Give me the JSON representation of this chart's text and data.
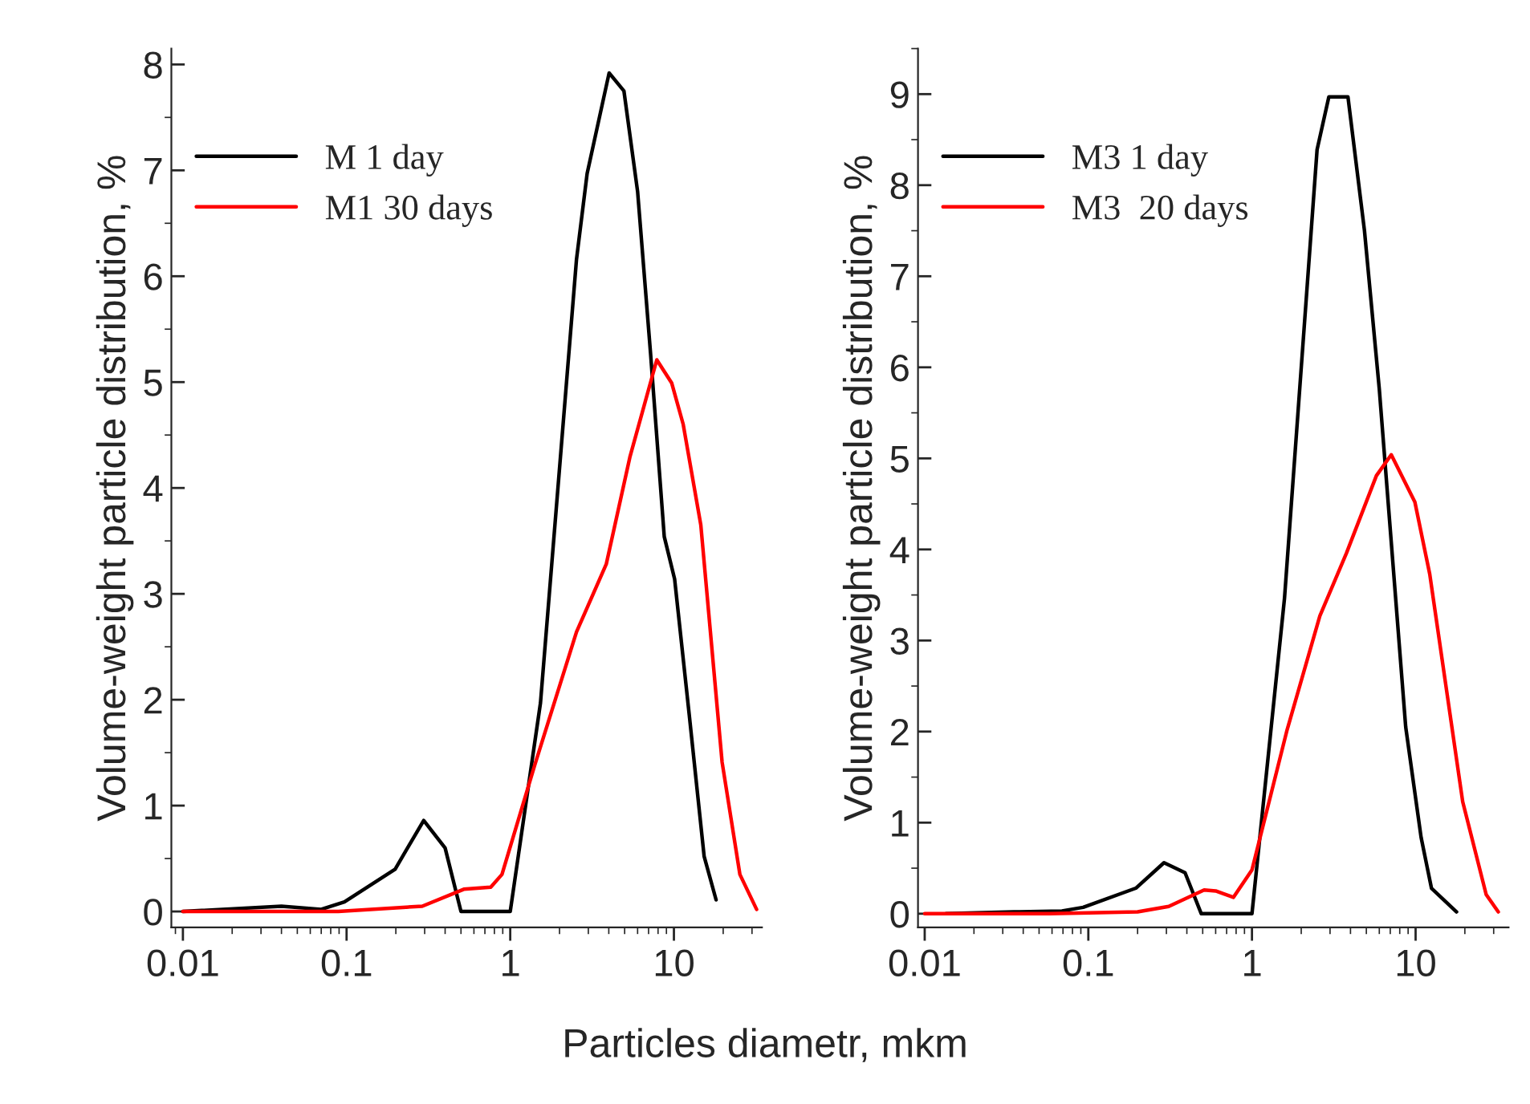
{
  "chart_data": [
    {
      "type": "line",
      "xlabel": "Particles diametr, mkm",
      "ylabel": "Volume-weight particle distribution, %",
      "log": "x",
      "legend": "top left",
      "grid": false,
      "xlim": [
        0.0085,
        34.5
      ],
      "xticks": [
        0.01,
        0.1,
        1,
        10
      ],
      "ylim": [
        -0.15,
        8.15
      ],
      "yticks": [
        0,
        1,
        2,
        3,
        4,
        5,
        6,
        7,
        8
      ],
      "series": [
        {
          "name": "M 1 day",
          "color": "#000000",
          "x": [
            0.01,
            0.04,
            0.07,
            0.097,
            0.198,
            0.296,
            0.4,
            0.5,
            1.0,
            1.53,
            2.54,
            2.95,
            4.02,
            4.95,
            6.0,
            7.2,
            8.73,
            10.1,
            12.4,
            15.3,
            18.1
          ],
          "values": [
            0,
            0.05,
            0.02,
            0.09,
            0.4,
            0.86,
            0.6,
            0,
            0,
            1.97,
            6.16,
            6.97,
            7.92,
            7.75,
            6.8,
            5.27,
            3.54,
            3.14,
            1.86,
            0.52,
            0.11
          ]
        },
        {
          "name": "M1 30 days",
          "color": "#ff0000",
          "x": [
            0.01,
            0.039,
            0.089,
            0.29,
            0.52,
            0.76,
            0.89,
            1.41,
            2.54,
            3.86,
            5.38,
            7.86,
            9.7,
            11.4,
            14.6,
            19.7,
            25.3,
            32
          ],
          "values": [
            0,
            0,
            0,
            0.05,
            0.21,
            0.23,
            0.35,
            1.38,
            2.64,
            3.28,
            4.29,
            5.21,
            4.99,
            4.6,
            3.65,
            1.41,
            0.35,
            0.02
          ]
        }
      ]
    },
    {
      "type": "line",
      "ylabel": "Volume-weight particle distribution, %",
      "log": "x",
      "legend": "top left",
      "grid": false,
      "xlim": [
        0.0091,
        37
      ],
      "xticks": [
        0.01,
        0.1,
        1,
        10
      ],
      "ylim": [
        -0.15,
        9.5
      ],
      "yticks": [
        0,
        1,
        2,
        3,
        4,
        5,
        6,
        7,
        8,
        9
      ],
      "series": [
        {
          "name": "M3 1 day",
          "color": "#000000",
          "x": [
            0.0135,
            0.035,
            0.069,
            0.093,
            0.195,
            0.29,
            0.39,
            0.49,
            1.0,
            1.58,
            2.5,
            2.95,
            3.86,
            4.87,
            6.0,
            8.7,
            10.8,
            12.5,
            17.8
          ],
          "values": [
            0,
            0.02,
            0.03,
            0.07,
            0.28,
            0.56,
            0.45,
            0,
            0,
            3.46,
            8.39,
            8.97,
            8.97,
            7.5,
            5.76,
            2.05,
            0.84,
            0.28,
            0.02
          ]
        },
        {
          "name": "M3  20 days",
          "color": "#ff0000",
          "x": [
            0.01,
            0.058,
            0.2,
            0.31,
            0.51,
            0.6,
            0.77,
            1.0,
            1.64,
            2.6,
            3.78,
            5.76,
            7.1,
            9.9,
            12.2,
            19.4,
            27,
            32
          ],
          "values": [
            0,
            0,
            0.02,
            0.08,
            0.26,
            0.25,
            0.18,
            0.48,
            2.02,
            3.27,
            3.96,
            4.81,
            5.04,
            4.52,
            3.73,
            1.23,
            0.21,
            0.02
          ]
        }
      ]
    }
  ]
}
